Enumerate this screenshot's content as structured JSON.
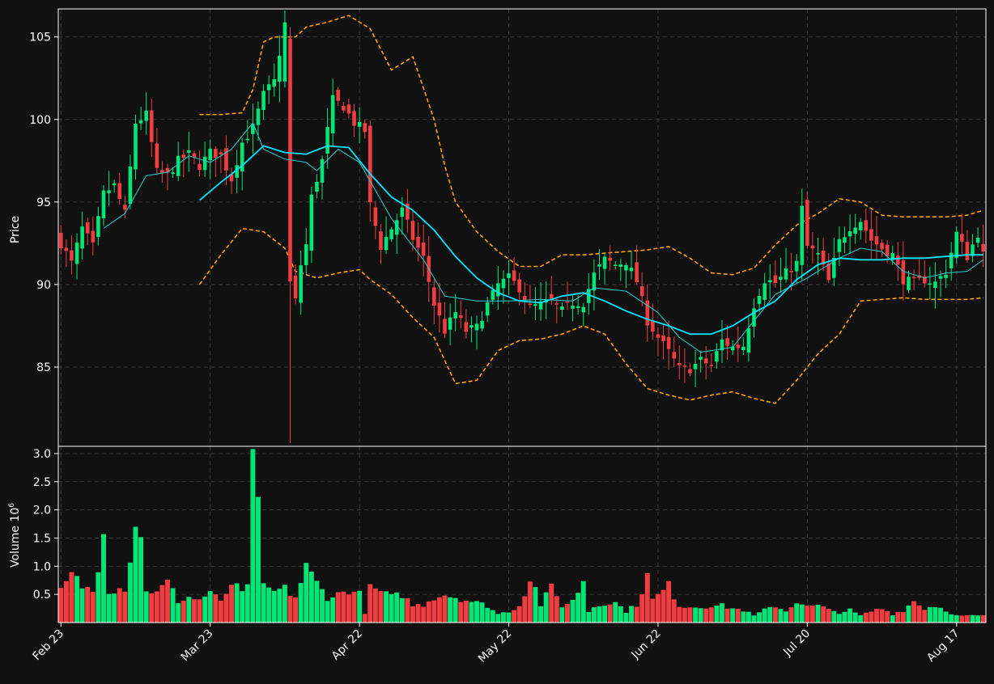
{
  "chart_data": {
    "type": "candlestick",
    "title": "",
    "xlabel": "",
    "ylabel": "Price",
    "volume_label": "Volume",
    "volume_exponent_base": "10",
    "volume_exponent": "6",
    "ylim": [
      80.2,
      106.7
    ],
    "volume_ylim": [
      0,
      3.1
    ],
    "y_ticks": [
      85,
      90,
      95,
      100,
      105
    ],
    "volume_ticks": [
      0.5,
      1.0,
      1.5,
      2.0,
      2.5,
      3.0
    ],
    "volume_tick_labels": [
      "0.5",
      "1.0",
      "1.5",
      "2.0",
      "2.5",
      "3.0"
    ],
    "x_tick_labels": [
      "Feb 23",
      "Mar 23",
      "Apr 22",
      "May 22",
      "Jun 22",
      "Jul 20",
      "Aug 17"
    ],
    "x_tick_index": [
      0,
      28,
      56,
      84,
      112,
      140,
      168
    ],
    "grid": true,
    "colors": {
      "background": "#111111",
      "up": "#00e676",
      "down": "#f23d40",
      "ma_fast": "#1fd1d1",
      "ma_slow": "#00e5ff",
      "bollinger": "#ffa000",
      "grid": "#3a3a3a",
      "axis": "#ffffff"
    },
    "ohlc_keypoints": [
      [
        0,
        92.5
      ],
      [
        2,
        91.3
      ],
      [
        4,
        93.4
      ],
      [
        6,
        92.3
      ],
      [
        8,
        95.5
      ],
      [
        10,
        96.0
      ],
      [
        12,
        94.3
      ],
      [
        14,
        99.8
      ],
      [
        16,
        100.3
      ],
      [
        18,
        96.8
      ],
      [
        20,
        96.6
      ],
      [
        22,
        97.5
      ],
      [
        24,
        97.9
      ],
      [
        26,
        97.2
      ],
      [
        28,
        98.0
      ],
      [
        30,
        97.8
      ],
      [
        32,
        96.4
      ],
      [
        34,
        98.6
      ],
      [
        36,
        99.5
      ],
      [
        38,
        101.5
      ],
      [
        40,
        102.3
      ],
      [
        42,
        105.8
      ],
      [
        43,
        90.1
      ],
      [
        44,
        89.0
      ],
      [
        45,
        91.2
      ],
      [
        46,
        92.4
      ],
      [
        47,
        95.3
      ],
      [
        49,
        97.5
      ],
      [
        51,
        101.2
      ],
      [
        53,
        100.8
      ],
      [
        55,
        99.8
      ],
      [
        57,
        99.3
      ],
      [
        58,
        94.8
      ],
      [
        60,
        92.3
      ],
      [
        62,
        93.4
      ],
      [
        64,
        94.5
      ],
      [
        66,
        92.8
      ],
      [
        68,
        91.6
      ],
      [
        70,
        88.8
      ],
      [
        72,
        87.2
      ],
      [
        74,
        88.3
      ],
      [
        76,
        87.2
      ],
      [
        78,
        87.4
      ],
      [
        80,
        88.8
      ],
      [
        82,
        90.0
      ],
      [
        84,
        90.4
      ],
      [
        86,
        89.8
      ],
      [
        88,
        88.6
      ],
      [
        90,
        88.8
      ],
      [
        92,
        89.0
      ],
      [
        94,
        88.4
      ],
      [
        96,
        88.9
      ],
      [
        98,
        88.9
      ],
      [
        100,
        90.6
      ],
      [
        102,
        91.5
      ],
      [
        104,
        91.2
      ],
      [
        106,
        91.4
      ],
      [
        108,
        90.2
      ],
      [
        110,
        87.8
      ],
      [
        112,
        86.8
      ],
      [
        114,
        85.9
      ],
      [
        116,
        84.9
      ],
      [
        118,
        84.9
      ],
      [
        120,
        85.4
      ],
      [
        122,
        85.1
      ],
      [
        124,
        86.6
      ],
      [
        126,
        86.2
      ],
      [
        128,
        86.3
      ],
      [
        130,
        88.8
      ],
      [
        132,
        90.3
      ],
      [
        134,
        90.1
      ],
      [
        136,
        90.7
      ],
      [
        138,
        91.3
      ],
      [
        139,
        94.6
      ],
      [
        140,
        92.3
      ],
      [
        142,
        91.8
      ],
      [
        144,
        90.2
      ],
      [
        146,
        92.6
      ],
      [
        148,
        93.5
      ],
      [
        150,
        93.9
      ],
      [
        152,
        92.7
      ],
      [
        154,
        92.2
      ],
      [
        156,
        91.8
      ],
      [
        158,
        90.3
      ],
      [
        160,
        90.1
      ],
      [
        162,
        90.3
      ],
      [
        164,
        90.1
      ],
      [
        166,
        90.8
      ],
      [
        168,
        93.1
      ],
      [
        170,
        91.7
      ],
      [
        172,
        93.1
      ],
      [
        173,
        91.8
      ]
    ],
    "volume_keypoints": [
      [
        0,
        0.55
      ],
      [
        2,
        0.85
      ],
      [
        4,
        0.65
      ],
      [
        6,
        0.55
      ],
      [
        8,
        1.55
      ],
      [
        9,
        0.58
      ],
      [
        12,
        0.62
      ],
      [
        14,
        1.7
      ],
      [
        15,
        1.45
      ],
      [
        16,
        0.6
      ],
      [
        18,
        0.52
      ],
      [
        20,
        0.72
      ],
      [
        22,
        0.38
      ],
      [
        24,
        0.45
      ],
      [
        26,
        0.4
      ],
      [
        28,
        0.55
      ],
      [
        30,
        0.35
      ],
      [
        32,
        0.7
      ],
      [
        34,
        0.52
      ],
      [
        35,
        0.6
      ],
      [
        36,
        3.08
      ],
      [
        37,
        2.23
      ],
      [
        38,
        0.62
      ],
      [
        40,
        0.55
      ],
      [
        42,
        0.6
      ],
      [
        44,
        0.45
      ],
      [
        46,
        0.98
      ],
      [
        48,
        0.7
      ],
      [
        50,
        0.45
      ],
      [
        52,
        0.5
      ],
      [
        54,
        0.58
      ],
      [
        56,
        0.5
      ],
      [
        57,
        0.18
      ],
      [
        58,
        0.6
      ],
      [
        60,
        0.55
      ],
      [
        62,
        0.45
      ],
      [
        64,
        0.5
      ],
      [
        66,
        0.3
      ],
      [
        68,
        0.32
      ],
      [
        70,
        0.45
      ],
      [
        72,
        0.5
      ],
      [
        74,
        0.45
      ],
      [
        76,
        0.4
      ],
      [
        78,
        0.35
      ],
      [
        80,
        0.3
      ],
      [
        82,
        0.15
      ],
      [
        84,
        0.2
      ],
      [
        86,
        0.3
      ],
      [
        88,
        0.78
      ],
      [
        89,
        0.6
      ],
      [
        90,
        0.32
      ],
      [
        92,
        0.62
      ],
      [
        94,
        0.3
      ],
      [
        96,
        0.38
      ],
      [
        98,
        0.75
      ],
      [
        99,
        0.2
      ],
      [
        100,
        0.28
      ],
      [
        102,
        0.35
      ],
      [
        104,
        0.35
      ],
      [
        106,
        0.2
      ],
      [
        108,
        0.32
      ],
      [
        110,
        0.82
      ],
      [
        111,
        0.4
      ],
      [
        112,
        0.48
      ],
      [
        114,
        0.65
      ],
      [
        116,
        0.3
      ],
      [
        118,
        0.28
      ],
      [
        120,
        0.28
      ],
      [
        122,
        0.3
      ],
      [
        124,
        0.3
      ],
      [
        126,
        0.25
      ],
      [
        128,
        0.22
      ],
      [
        130,
        0.12
      ],
      [
        132,
        0.22
      ],
      [
        134,
        0.3
      ],
      [
        136,
        0.2
      ],
      [
        138,
        0.38
      ],
      [
        140,
        0.28
      ],
      [
        142,
        0.3
      ],
      [
        144,
        0.22
      ],
      [
        146,
        0.18
      ],
      [
        148,
        0.22
      ],
      [
        150,
        0.12
      ],
      [
        152,
        0.2
      ],
      [
        154,
        0.25
      ],
      [
        156,
        0.15
      ],
      [
        158,
        0.22
      ],
      [
        160,
        0.38
      ],
      [
        162,
        0.25
      ],
      [
        164,
        0.3
      ],
      [
        166,
        0.22
      ],
      [
        168,
        0.12
      ],
      [
        173,
        0.12
      ]
    ],
    "ma_fast_keypoints": [
      [
        8,
        93.4
      ],
      [
        12,
        94.3
      ],
      [
        16,
        96.6
      ],
      [
        20,
        96.8
      ],
      [
        24,
        97.8
      ],
      [
        28,
        97.4
      ],
      [
        32,
        98.2
      ],
      [
        36,
        99.8
      ],
      [
        38,
        98.2
      ],
      [
        42,
        97.6
      ],
      [
        46,
        97.4
      ],
      [
        48,
        96.9
      ],
      [
        52,
        98.2
      ],
      [
        56,
        97.4
      ],
      [
        62,
        94.0
      ],
      [
        68,
        91.5
      ],
      [
        72,
        89.3
      ],
      [
        78,
        89.0
      ],
      [
        84,
        89.0
      ],
      [
        90,
        89.1
      ],
      [
        96,
        89.0
      ],
      [
        100,
        89.8
      ],
      [
        106,
        89.6
      ],
      [
        112,
        88.3
      ],
      [
        116,
        86.8
      ],
      [
        120,
        85.9
      ],
      [
        126,
        86.2
      ],
      [
        130,
        87.8
      ],
      [
        134,
        89.4
      ],
      [
        140,
        90.4
      ],
      [
        146,
        91.6
      ],
      [
        150,
        92.2
      ],
      [
        154,
        92.0
      ],
      [
        158,
        90.8
      ],
      [
        162,
        90.4
      ],
      [
        166,
        90.7
      ],
      [
        170,
        90.8
      ],
      [
        173,
        91.5
      ]
    ],
    "ma_slow_keypoints": [
      [
        26,
        95.1
      ],
      [
        30,
        96.2
      ],
      [
        34,
        97.2
      ],
      [
        38,
        98.4
      ],
      [
        42,
        98.0
      ],
      [
        46,
        97.9
      ],
      [
        50,
        98.4
      ],
      [
        54,
        98.3
      ],
      [
        58,
        96.7
      ],
      [
        62,
        95.3
      ],
      [
        66,
        94.5
      ],
      [
        70,
        93.3
      ],
      [
        74,
        91.7
      ],
      [
        78,
        90.4
      ],
      [
        82,
        89.5
      ],
      [
        86,
        89.0
      ],
      [
        90,
        88.9
      ],
      [
        94,
        89.3
      ],
      [
        98,
        89.5
      ],
      [
        102,
        89.0
      ],
      [
        106,
        88.4
      ],
      [
        110,
        87.9
      ],
      [
        114,
        87.5
      ],
      [
        118,
        87.0
      ],
      [
        122,
        87.0
      ],
      [
        126,
        87.5
      ],
      [
        130,
        88.3
      ],
      [
        134,
        89.0
      ],
      [
        138,
        90.3
      ],
      [
        142,
        91.2
      ],
      [
        146,
        91.6
      ],
      [
        150,
        91.5
      ],
      [
        154,
        91.5
      ],
      [
        158,
        91.6
      ],
      [
        162,
        91.6
      ],
      [
        166,
        91.7
      ],
      [
        170,
        91.8
      ],
      [
        173,
        91.8
      ]
    ],
    "bb_upper_keypoints": [
      [
        26,
        100.3
      ],
      [
        30,
        100.3
      ],
      [
        34,
        100.4
      ],
      [
        36,
        101.8
      ],
      [
        38,
        104.7
      ],
      [
        40,
        105.0
      ],
      [
        44,
        105.0
      ],
      [
        46,
        105.6
      ],
      [
        50,
        105.9
      ],
      [
        54,
        106.3
      ],
      [
        58,
        105.5
      ],
      [
        62,
        103.0
      ],
      [
        66,
        103.8
      ],
      [
        70,
        100.0
      ],
      [
        72,
        97.2
      ],
      [
        74,
        95.0
      ],
      [
        78,
        93.2
      ],
      [
        82,
        92.0
      ],
      [
        86,
        91.1
      ],
      [
        90,
        91.1
      ],
      [
        94,
        91.8
      ],
      [
        98,
        91.8
      ],
      [
        102,
        91.9
      ],
      [
        106,
        92.0
      ],
      [
        110,
        92.1
      ],
      [
        114,
        92.3
      ],
      [
        118,
        91.6
      ],
      [
        122,
        90.7
      ],
      [
        126,
        90.6
      ],
      [
        130,
        91.0
      ],
      [
        134,
        92.4
      ],
      [
        138,
        93.6
      ],
      [
        142,
        94.3
      ],
      [
        146,
        95.2
      ],
      [
        150,
        95.0
      ],
      [
        154,
        94.2
      ],
      [
        158,
        94.1
      ],
      [
        162,
        94.1
      ],
      [
        166,
        94.1
      ],
      [
        170,
        94.2
      ],
      [
        173,
        94.5
      ]
    ],
    "bb_lower_keypoints": [
      [
        26,
        90.0
      ],
      [
        30,
        91.8
      ],
      [
        34,
        93.4
      ],
      [
        38,
        93.2
      ],
      [
        42,
        92.2
      ],
      [
        44,
        90.8
      ],
      [
        48,
        90.4
      ],
      [
        52,
        90.7
      ],
      [
        56,
        90.9
      ],
      [
        58,
        90.3
      ],
      [
        62,
        89.4
      ],
      [
        66,
        88.0
      ],
      [
        70,
        86.8
      ],
      [
        74,
        84.0
      ],
      [
        78,
        84.2
      ],
      [
        82,
        86.0
      ],
      [
        86,
        86.6
      ],
      [
        90,
        86.7
      ],
      [
        94,
        87.0
      ],
      [
        98,
        87.5
      ],
      [
        102,
        87.0
      ],
      [
        106,
        85.2
      ],
      [
        110,
        83.7
      ],
      [
        114,
        83.3
      ],
      [
        118,
        83.0
      ],
      [
        122,
        83.3
      ],
      [
        126,
        83.5
      ],
      [
        130,
        83.1
      ],
      [
        134,
        82.8
      ],
      [
        138,
        84.2
      ],
      [
        142,
        85.8
      ],
      [
        146,
        87.0
      ],
      [
        150,
        89.0
      ],
      [
        154,
        89.1
      ],
      [
        158,
        89.2
      ],
      [
        162,
        89.1
      ],
      [
        166,
        89.1
      ],
      [
        170,
        89.1
      ],
      [
        173,
        89.2
      ]
    ],
    "num_bars": 174,
    "data_is_approximate": true
  }
}
